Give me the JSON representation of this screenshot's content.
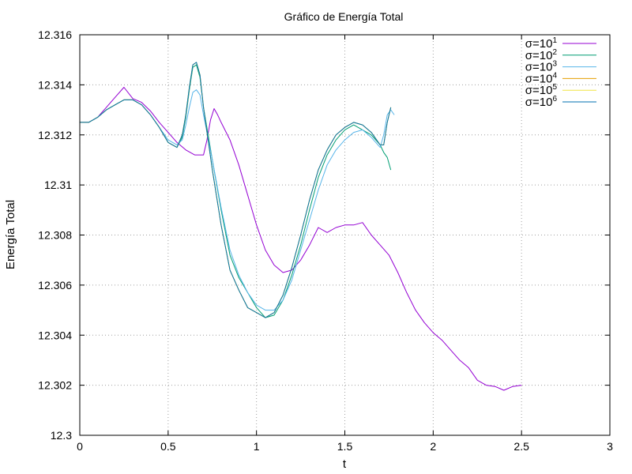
{
  "chart_data": {
    "type": "line",
    "title": "Gráfico de Energía Total",
    "xlabel": "t",
    "ylabel": "Energía Total",
    "xlim": [
      0,
      3
    ],
    "ylim": [
      12.3,
      12.316
    ],
    "xticks": [
      {
        "value": 0,
        "label": "0"
      },
      {
        "value": 0.5,
        "label": "0.5"
      },
      {
        "value": 1,
        "label": "1"
      },
      {
        "value": 1.5,
        "label": "1.5"
      },
      {
        "value": 2,
        "label": "2"
      },
      {
        "value": 2.5,
        "label": "2.5"
      },
      {
        "value": 3,
        "label": "3"
      }
    ],
    "yticks": [
      {
        "value": 12.3,
        "label": "12.3"
      },
      {
        "value": 12.302,
        "label": "12.302"
      },
      {
        "value": 12.304,
        "label": "12.304"
      },
      {
        "value": 12.306,
        "label": "12.306"
      },
      {
        "value": 12.308,
        "label": "12.308"
      },
      {
        "value": 12.31,
        "label": "12.31"
      },
      {
        "value": 12.312,
        "label": "12.312"
      },
      {
        "value": 12.314,
        "label": "12.314"
      },
      {
        "value": 12.316,
        "label": "12.316"
      }
    ],
    "grid": true,
    "legend_position": "top-right",
    "series": [
      {
        "name": "σ=10^1",
        "label_base": "σ=10",
        "label_exp": "1",
        "color": "#9400d3",
        "x": [
          0,
          0.05,
          0.1,
          0.15,
          0.2,
          0.25,
          0.3,
          0.35,
          0.4,
          0.45,
          0.5,
          0.55,
          0.6,
          0.65,
          0.7,
          0.72,
          0.74,
          0.76,
          0.78,
          0.8,
          0.85,
          0.9,
          0.95,
          1.0,
          1.05,
          1.1,
          1.15,
          1.2,
          1.25,
          1.3,
          1.35,
          1.4,
          1.45,
          1.5,
          1.55,
          1.6,
          1.65,
          1.7,
          1.75,
          1.8,
          1.85,
          1.9,
          1.95,
          2.0,
          2.05,
          2.1,
          2.15,
          2.2,
          2.25,
          2.3,
          2.35,
          2.4,
          2.45,
          2.5
        ],
        "y": [
          12.3125,
          12.3125,
          12.3127,
          12.3131,
          12.3135,
          12.3139,
          12.31345,
          12.3133,
          12.31295,
          12.3125,
          12.3121,
          12.3117,
          12.3114,
          12.3112,
          12.3112,
          12.3118,
          12.3126,
          12.31305,
          12.3128,
          12.3125,
          12.3118,
          12.3108,
          12.3096,
          12.3084,
          12.3074,
          12.3068,
          12.3065,
          12.3066,
          12.307,
          12.3076,
          12.3083,
          12.3081,
          12.3083,
          12.3084,
          12.3084,
          12.3085,
          12.308,
          12.3076,
          12.3072,
          12.3065,
          12.3057,
          12.305,
          12.3045,
          12.3041,
          12.3038,
          12.3034,
          12.303,
          12.3027,
          12.3022,
          12.302,
          12.30195,
          12.3018,
          12.30195,
          12.302
        ]
      },
      {
        "name": "σ=10^2",
        "label_base": "σ=10",
        "label_exp": "2",
        "color": "#009e73",
        "x": [
          0,
          0.05,
          0.1,
          0.15,
          0.2,
          0.25,
          0.3,
          0.35,
          0.4,
          0.45,
          0.5,
          0.55,
          0.58,
          0.6,
          0.62,
          0.64,
          0.66,
          0.68,
          0.7,
          0.75,
          0.8,
          0.85,
          0.9,
          0.95,
          1.0,
          1.05,
          1.1,
          1.15,
          1.2,
          1.25,
          1.3,
          1.35,
          1.4,
          1.45,
          1.5,
          1.55,
          1.6,
          1.65,
          1.7,
          1.72,
          1.74,
          1.76
        ],
        "y": [
          12.3125,
          12.3125,
          12.3127,
          12.313,
          12.3132,
          12.3134,
          12.3134,
          12.3132,
          12.3128,
          12.3123,
          12.3117,
          12.3115,
          12.3119,
          12.3127,
          12.3138,
          12.3147,
          12.3148,
          12.3143,
          12.3131,
          12.311,
          12.309,
          12.3072,
          12.3063,
          12.3057,
          12.3051,
          12.3047,
          12.3048,
          12.3054,
          12.3064,
          12.3076,
          12.309,
          12.3103,
          12.3112,
          12.3118,
          12.3122,
          12.3124,
          12.3122,
          12.312,
          12.3116,
          12.3113,
          12.3111,
          12.3106
        ]
      },
      {
        "name": "σ=10^3",
        "label_base": "σ=10",
        "label_exp": "3",
        "color": "#56b4e9",
        "x": [
          0,
          0.05,
          0.1,
          0.15,
          0.2,
          0.25,
          0.3,
          0.35,
          0.4,
          0.45,
          0.5,
          0.55,
          0.58,
          0.6,
          0.62,
          0.64,
          0.66,
          0.68,
          0.7,
          0.75,
          0.8,
          0.85,
          0.9,
          0.95,
          1.0,
          1.05,
          1.1,
          1.15,
          1.2,
          1.25,
          1.3,
          1.35,
          1.4,
          1.45,
          1.5,
          1.55,
          1.6,
          1.65,
          1.7,
          1.72,
          1.74,
          1.76,
          1.78
        ],
        "y": [
          12.3125,
          12.3125,
          12.3127,
          12.313,
          12.3132,
          12.3134,
          12.3134,
          12.3132,
          12.3128,
          12.3123,
          12.3118,
          12.3116,
          12.3118,
          12.3124,
          12.3131,
          12.3137,
          12.3138,
          12.3136,
          12.3128,
          12.311,
          12.3091,
          12.3074,
          12.3064,
          12.3057,
          12.3052,
          12.305,
          12.305,
          12.3054,
          12.3062,
          12.3074,
          12.3086,
          12.3098,
          12.3108,
          12.3114,
          12.3118,
          12.3121,
          12.3122,
          12.3119,
          12.3115,
          12.312,
          12.3128,
          12.313,
          12.3128
        ]
      },
      {
        "name": "σ=10^4",
        "label_base": "σ=10",
        "label_exp": "4",
        "color": "#e69f00",
        "x": [
          0,
          0.05,
          0.1,
          0.15,
          0.2,
          0.25,
          0.3,
          0.35,
          0.4,
          0.45,
          0.5,
          0.55,
          0.58,
          0.6,
          0.62,
          0.64,
          0.66,
          0.68,
          0.7,
          0.75,
          0.8,
          0.85,
          0.9,
          0.95,
          1.0,
          1.05,
          1.1,
          1.15,
          1.2,
          1.25,
          1.3,
          1.35,
          1.4,
          1.45,
          1.5,
          1.55,
          1.6,
          1.65,
          1.7,
          1.72,
          1.74,
          1.76
        ],
        "y": [
          12.3125,
          12.3125,
          12.3127,
          12.313,
          12.3132,
          12.3134,
          12.3134,
          12.3132,
          12.3128,
          12.3123,
          12.3117,
          12.3115,
          12.312,
          12.3128,
          12.3139,
          12.3148,
          12.3149,
          12.3144,
          12.3131,
          12.3106,
          12.3084,
          12.3066,
          12.3058,
          12.3051,
          12.3049,
          12.3047,
          12.3049,
          12.3056,
          12.3067,
          12.308,
          12.3094,
          12.3106,
          12.3114,
          12.312,
          12.3123,
          12.3125,
          12.3124,
          12.3121,
          12.3116,
          12.3116,
          12.3125,
          12.3131
        ]
      },
      {
        "name": "σ=10^5",
        "label_base": "σ=10",
        "label_exp": "5",
        "color": "#f0e442",
        "x": [
          0,
          0.05,
          0.1,
          0.15,
          0.2,
          0.25,
          0.3,
          0.35,
          0.4,
          0.45,
          0.5,
          0.55,
          0.58,
          0.6,
          0.62,
          0.64,
          0.66,
          0.68,
          0.7,
          0.75,
          0.8,
          0.85,
          0.9,
          0.95,
          1.0,
          1.05,
          1.1,
          1.15,
          1.2,
          1.25,
          1.3,
          1.35,
          1.4,
          1.45,
          1.5,
          1.55,
          1.6,
          1.65,
          1.7,
          1.72,
          1.74,
          1.76
        ],
        "y": [
          12.3125,
          12.3125,
          12.3127,
          12.313,
          12.3132,
          12.3134,
          12.3134,
          12.3132,
          12.3128,
          12.3123,
          12.3117,
          12.3115,
          12.312,
          12.3128,
          12.3139,
          12.3148,
          12.3149,
          12.3144,
          12.3131,
          12.3106,
          12.3084,
          12.3066,
          12.3058,
          12.3051,
          12.3049,
          12.3047,
          12.3049,
          12.3056,
          12.3067,
          12.308,
          12.3094,
          12.3106,
          12.3114,
          12.312,
          12.3123,
          12.3125,
          12.3124,
          12.3121,
          12.3116,
          12.3116,
          12.3125,
          12.3131
        ]
      },
      {
        "name": "σ=10^6",
        "label_base": "σ=10",
        "label_exp": "6",
        "color": "#0072b2",
        "x": [
          0,
          0.05,
          0.1,
          0.15,
          0.2,
          0.25,
          0.3,
          0.35,
          0.4,
          0.45,
          0.5,
          0.55,
          0.58,
          0.6,
          0.62,
          0.64,
          0.66,
          0.68,
          0.7,
          0.75,
          0.8,
          0.85,
          0.9,
          0.95,
          1.0,
          1.05,
          1.1,
          1.15,
          1.2,
          1.25,
          1.3,
          1.35,
          1.4,
          1.45,
          1.5,
          1.55,
          1.6,
          1.65,
          1.7,
          1.72,
          1.74,
          1.76
        ],
        "y": [
          12.3125,
          12.3125,
          12.3127,
          12.313,
          12.3132,
          12.3134,
          12.3134,
          12.3132,
          12.3128,
          12.3123,
          12.3117,
          12.3115,
          12.312,
          12.3128,
          12.3139,
          12.3148,
          12.3149,
          12.3144,
          12.3131,
          12.3106,
          12.3084,
          12.3066,
          12.3058,
          12.3051,
          12.3049,
          12.3047,
          12.3049,
          12.3056,
          12.3067,
          12.308,
          12.3094,
          12.3106,
          12.3114,
          12.312,
          12.3123,
          12.3125,
          12.3124,
          12.3121,
          12.3116,
          12.3116,
          12.3125,
          12.3131
        ]
      }
    ]
  }
}
